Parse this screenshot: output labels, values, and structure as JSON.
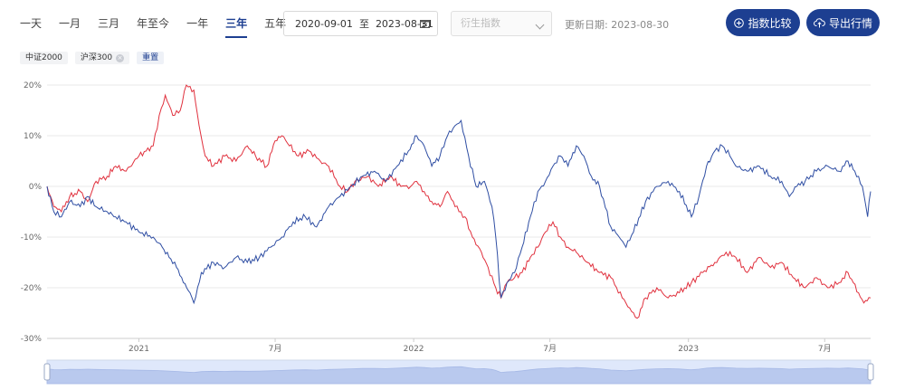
{
  "range_tabs": [
    {
      "label": "一天"
    },
    {
      "label": "一月"
    },
    {
      "label": "三月"
    },
    {
      "label": "年至今"
    },
    {
      "label": "一年"
    },
    {
      "label": "三年",
      "active": true
    },
    {
      "label": "五年"
    }
  ],
  "date_range": {
    "start": "2020-09-01",
    "separator": "至",
    "end": "2023-08-31"
  },
  "derivative_select": {
    "placeholder": "衍生指数"
  },
  "update_info": "更新日期: 2023-08-30",
  "buttons": {
    "compare": "指数比较",
    "export": "导出行情"
  },
  "chips": [
    {
      "label": "中证2000",
      "removable": false
    },
    {
      "label": "沪深300",
      "removable": true
    }
  ],
  "reset_label": "重置",
  "colors": {
    "accent": "#1d3f91",
    "series_red": "#e0303d",
    "series_blue": "#2f4ea3",
    "grid": "#e8e8e8"
  },
  "chart_data": {
    "type": "line",
    "ylim": [
      -30,
      20
    ],
    "yticks": [
      20,
      10,
      0,
      -10,
      -20,
      -30
    ],
    "ytick_labels": [
      "20%",
      "10%",
      "0%",
      "-10%",
      "-20%",
      "-30%"
    ],
    "x_range": [
      "2020-09-01",
      "2023-08-31"
    ],
    "xticks": [
      {
        "date": "2021-01-01",
        "label": "2021"
      },
      {
        "date": "2021-07-01",
        "label": "7月"
      },
      {
        "date": "2022-01-01",
        "label": "2022"
      },
      {
        "date": "2022-07-01",
        "label": "7月"
      },
      {
        "date": "2023-01-01",
        "label": "2023"
      },
      {
        "date": "2023-07-01",
        "label": "7月"
      }
    ],
    "series": [
      {
        "name": "中证2000",
        "color": "#e0303d",
        "points": [
          [
            "2020-09-01",
            0
          ],
          [
            "2020-09-10",
            -4
          ],
          [
            "2020-09-20",
            -5
          ],
          [
            "2020-10-01",
            -2
          ],
          [
            "2020-10-15",
            -1
          ],
          [
            "2020-10-25",
            -3
          ],
          [
            "2020-11-05",
            1
          ],
          [
            "2020-11-20",
            2
          ],
          [
            "2020-12-01",
            4
          ],
          [
            "2020-12-15",
            3
          ],
          [
            "2021-01-01",
            6
          ],
          [
            "2021-01-20",
            8
          ],
          [
            "2021-01-28",
            14
          ],
          [
            "2021-02-05",
            18
          ],
          [
            "2021-02-15",
            14
          ],
          [
            "2021-02-25",
            15
          ],
          [
            "2021-03-05",
            20
          ],
          [
            "2021-03-15",
            19
          ],
          [
            "2021-03-22",
            12
          ],
          [
            "2021-03-30",
            6
          ],
          [
            "2021-04-10",
            4
          ],
          [
            "2021-04-25",
            6
          ],
          [
            "2021-05-10",
            5
          ],
          [
            "2021-05-25",
            8
          ],
          [
            "2021-06-05",
            6
          ],
          [
            "2021-06-20",
            4
          ],
          [
            "2021-07-01",
            9
          ],
          [
            "2021-07-10",
            10
          ],
          [
            "2021-07-20",
            8
          ],
          [
            "2021-08-01",
            6
          ],
          [
            "2021-08-15",
            7
          ],
          [
            "2021-08-30",
            5
          ],
          [
            "2021-09-10",
            4
          ],
          [
            "2021-09-25",
            0
          ],
          [
            "2021-10-05",
            -1
          ],
          [
            "2021-10-15",
            1
          ],
          [
            "2021-11-01",
            2
          ],
          [
            "2021-11-15",
            0
          ],
          [
            "2021-12-01",
            2
          ],
          [
            "2021-12-15",
            0
          ],
          [
            "2021-12-28",
            0
          ],
          [
            "2022-01-05",
            1
          ],
          [
            "2022-01-15",
            -1
          ],
          [
            "2022-01-25",
            -3
          ],
          [
            "2022-02-05",
            -4
          ],
          [
            "2022-02-15",
            -1
          ],
          [
            "2022-02-25",
            -4
          ],
          [
            "2022-03-10",
            -6
          ],
          [
            "2022-03-20",
            -10
          ],
          [
            "2022-04-01",
            -13
          ],
          [
            "2022-04-10",
            -16
          ],
          [
            "2022-04-20",
            -20
          ],
          [
            "2022-04-27",
            -22
          ],
          [
            "2022-05-05",
            -19
          ],
          [
            "2022-05-15",
            -18
          ],
          [
            "2022-05-25",
            -17
          ],
          [
            "2022-06-05",
            -14
          ],
          [
            "2022-06-15",
            -12
          ],
          [
            "2022-06-25",
            -9
          ],
          [
            "2022-07-05",
            -7
          ],
          [
            "2022-07-15",
            -10
          ],
          [
            "2022-07-25",
            -12
          ],
          [
            "2022-08-05",
            -13
          ],
          [
            "2022-08-20",
            -15
          ],
          [
            "2022-09-05",
            -17
          ],
          [
            "2022-09-20",
            -18
          ],
          [
            "2022-10-05",
            -22
          ],
          [
            "2022-10-15",
            -24
          ],
          [
            "2022-10-25",
            -26
          ],
          [
            "2022-11-05",
            -22
          ],
          [
            "2022-11-20",
            -20
          ],
          [
            "2022-12-05",
            -22
          ],
          [
            "2022-12-20",
            -21
          ],
          [
            "2023-01-05",
            -19
          ],
          [
            "2023-01-20",
            -17
          ],
          [
            "2023-02-05",
            -15
          ],
          [
            "2023-02-20",
            -13
          ],
          [
            "2023-03-05",
            -14
          ],
          [
            "2023-03-20",
            -17
          ],
          [
            "2023-04-05",
            -14
          ],
          [
            "2023-04-20",
            -16
          ],
          [
            "2023-05-05",
            -15
          ],
          [
            "2023-05-20",
            -18
          ],
          [
            "2023-06-05",
            -20
          ],
          [
            "2023-06-20",
            -18
          ],
          [
            "2023-07-05",
            -20
          ],
          [
            "2023-07-20",
            -19
          ],
          [
            "2023-08-01",
            -17
          ],
          [
            "2023-08-15",
            -21
          ],
          [
            "2023-08-22",
            -23
          ],
          [
            "2023-08-31",
            -22
          ]
        ]
      },
      {
        "name": "沪深300",
        "color": "#2f4ea3",
        "points": [
          [
            "2020-09-01",
            0
          ],
          [
            "2020-09-10",
            -5
          ],
          [
            "2020-09-20",
            -6
          ],
          [
            "2020-10-01",
            -3
          ],
          [
            "2020-10-15",
            -4
          ],
          [
            "2020-10-25",
            -2
          ],
          [
            "2020-11-05",
            -4
          ],
          [
            "2020-11-20",
            -5
          ],
          [
            "2020-12-01",
            -6
          ],
          [
            "2020-12-15",
            -7
          ],
          [
            "2021-01-01",
            -9
          ],
          [
            "2021-01-20",
            -10
          ],
          [
            "2021-02-01",
            -12
          ],
          [
            "2021-02-10",
            -14
          ],
          [
            "2021-02-20",
            -16
          ],
          [
            "2021-03-01",
            -19
          ],
          [
            "2021-03-10",
            -21
          ],
          [
            "2021-03-15",
            -23
          ],
          [
            "2021-03-25",
            -17
          ],
          [
            "2021-04-10",
            -15
          ],
          [
            "2021-04-25",
            -16
          ],
          [
            "2021-05-10",
            -14
          ],
          [
            "2021-05-25",
            -15
          ],
          [
            "2021-06-10",
            -14
          ],
          [
            "2021-06-25",
            -12
          ],
          [
            "2021-07-10",
            -10
          ],
          [
            "2021-07-25",
            -7
          ],
          [
            "2021-08-10",
            -6
          ],
          [
            "2021-08-25",
            -8
          ],
          [
            "2021-09-10",
            -4
          ],
          [
            "2021-09-25",
            -2
          ],
          [
            "2021-10-10",
            0
          ],
          [
            "2021-10-25",
            2
          ],
          [
            "2021-11-10",
            3
          ],
          [
            "2021-11-25",
            1
          ],
          [
            "2021-12-10",
            4
          ],
          [
            "2021-12-25",
            7
          ],
          [
            "2022-01-05",
            10
          ],
          [
            "2022-01-15",
            8
          ],
          [
            "2022-01-25",
            4
          ],
          [
            "2022-02-05",
            6
          ],
          [
            "2022-02-15",
            10
          ],
          [
            "2022-02-25",
            12
          ],
          [
            "2022-03-05",
            13
          ],
          [
            "2022-03-15",
            6
          ],
          [
            "2022-03-25",
            0
          ],
          [
            "2022-04-05",
            1
          ],
          [
            "2022-04-15",
            -4
          ],
          [
            "2022-04-20",
            -10
          ],
          [
            "2022-04-27",
            -22
          ],
          [
            "2022-05-05",
            -19
          ],
          [
            "2022-05-15",
            -17
          ],
          [
            "2022-05-25",
            -12
          ],
          [
            "2022-06-05",
            -6
          ],
          [
            "2022-06-15",
            -1
          ],
          [
            "2022-06-25",
            1
          ],
          [
            "2022-07-05",
            4
          ],
          [
            "2022-07-15",
            6
          ],
          [
            "2022-07-25",
            4
          ],
          [
            "2022-08-05",
            8
          ],
          [
            "2022-08-15",
            6
          ],
          [
            "2022-08-25",
            2
          ],
          [
            "2022-09-05",
            0
          ],
          [
            "2022-09-20",
            -8
          ],
          [
            "2022-10-01",
            -10
          ],
          [
            "2022-10-10",
            -12
          ],
          [
            "2022-10-20",
            -9
          ],
          [
            "2022-11-05",
            -3
          ],
          [
            "2022-11-20",
            0
          ],
          [
            "2022-12-05",
            1
          ],
          [
            "2022-12-20",
            -1
          ],
          [
            "2023-01-05",
            -6
          ],
          [
            "2023-01-15",
            -2
          ],
          [
            "2023-01-25",
            4
          ],
          [
            "2023-02-05",
            7
          ],
          [
            "2023-02-15",
            8
          ],
          [
            "2023-02-25",
            6
          ],
          [
            "2023-03-05",
            4
          ],
          [
            "2023-03-20",
            3
          ],
          [
            "2023-04-05",
            4
          ],
          [
            "2023-04-20",
            2
          ],
          [
            "2023-05-05",
            1
          ],
          [
            "2023-05-15",
            -2
          ],
          [
            "2023-05-25",
            0
          ],
          [
            "2023-06-05",
            1
          ],
          [
            "2023-06-20",
            3
          ],
          [
            "2023-07-05",
            4
          ],
          [
            "2023-07-20",
            3
          ],
          [
            "2023-08-01",
            5
          ],
          [
            "2023-08-10",
            3
          ],
          [
            "2023-08-20",
            0
          ],
          [
            "2023-08-27",
            -6
          ],
          [
            "2023-08-31",
            -1
          ]
        ]
      }
    ]
  }
}
